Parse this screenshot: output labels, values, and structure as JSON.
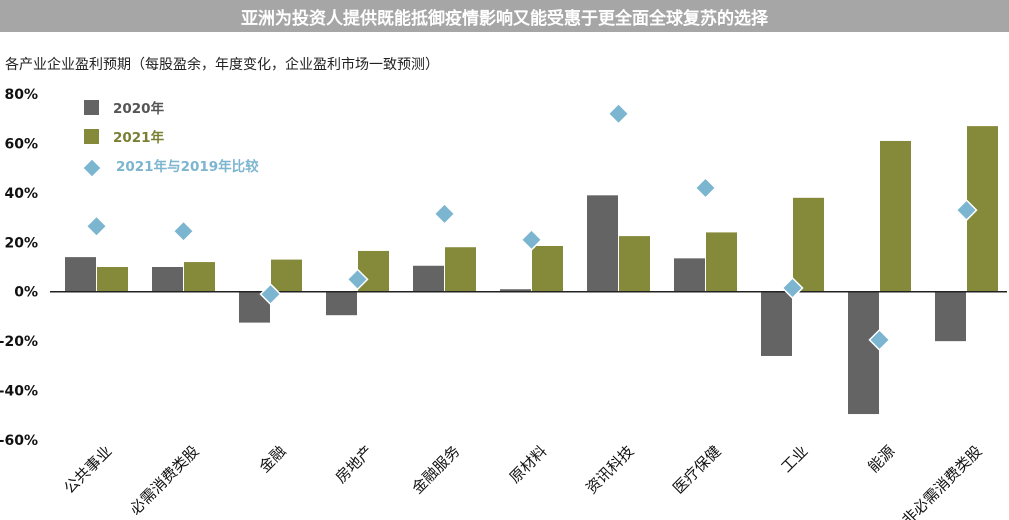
{
  "header": {
    "title": "亚洲为投资人提供既能抵御疫情影响又能受惠于更全面全球复苏的选择"
  },
  "chart_data": {
    "type": "bar",
    "subtitle": "各产业企业盈利预期（每股盈余，年度变化，企业盈利市场一致预测）",
    "categories": [
      "公共事业",
      "必需消费类股",
      "金融",
      "房地产",
      "金融服务",
      "原材料",
      "资讯科技",
      "医疗保健",
      "工业",
      "能源",
      "非必需消费类股"
    ],
    "ylim": [
      -60,
      80
    ],
    "yticks": [
      80,
      60,
      40,
      20,
      0,
      -20,
      -40,
      -60
    ],
    "ytick_labels": [
      "80%",
      "60%",
      "40%",
      "20%",
      "0%",
      "-20%",
      "-40%",
      "-60%"
    ],
    "legend_position": "top-left",
    "grid": false,
    "series": [
      {
        "name": "2020年",
        "kind": "bar",
        "color": "#646464",
        "values": [
          14,
          10,
          12.5,
          9.5,
          10.5,
          1,
          39,
          13.5,
          26,
          49.5,
          20
        ],
        "signs": [
          1,
          1,
          -1,
          -1,
          1,
          1,
          1,
          1,
          -1,
          -1,
          -1
        ]
      },
      {
        "name": "2021年",
        "kind": "bar",
        "color": "#848a3a",
        "values": [
          10,
          12,
          13,
          16.5,
          18,
          18.5,
          22.5,
          24,
          38,
          61,
          67
        ],
        "signs": [
          1,
          1,
          1,
          1,
          1,
          1,
          1,
          1,
          1,
          1,
          1
        ]
      },
      {
        "name": "2021年与2019年比较",
        "kind": "marker",
        "color": "#7cb5cf",
        "values": [
          26.5,
          24.5,
          -1,
          5,
          31.5,
          21,
          72,
          42,
          1.5,
          -19.5,
          33
        ],
        "signs": [
          1,
          1,
          1,
          1,
          1,
          1,
          1,
          1,
          1,
          1,
          1
        ]
      }
    ]
  }
}
